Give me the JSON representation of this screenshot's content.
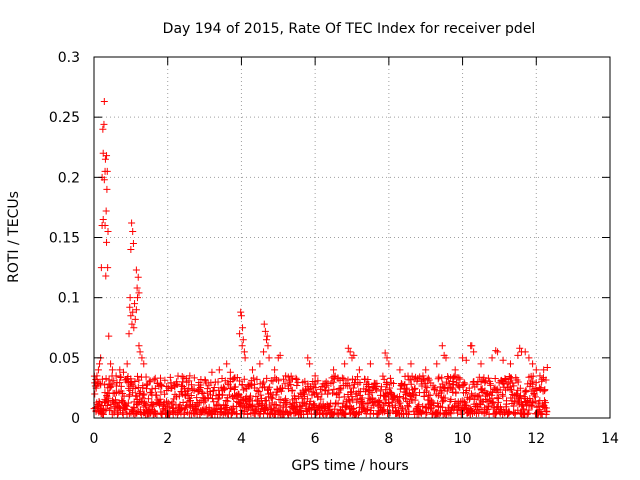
{
  "chart_data": {
    "type": "scatter",
    "title": "Day 194 of 2015, Rate Of TEC Index for receiver pdel",
    "xlabel": "GPS time / hours",
    "ylabel": "ROTI / TECUs",
    "xlim": [
      0,
      14
    ],
    "ylim": [
      0,
      0.3
    ],
    "xticks": [
      0,
      2,
      4,
      6,
      8,
      10,
      12,
      14
    ],
    "yticks": [
      0,
      0.05,
      0.1,
      0.15,
      0.2,
      0.25,
      0.3
    ],
    "xtick_labels": [
      "0",
      "2",
      "4",
      "6",
      "8",
      "10",
      "12",
      "14"
    ],
    "ytick_labels": [
      "0",
      "0.05",
      "0.1",
      "0.15",
      "0.2",
      "0.25",
      "0.3"
    ],
    "grid": true,
    "marker": "+",
    "color": "#ff0000",
    "series": [
      {
        "name": "ROTI",
        "points": [
          [
            0.05,
            0.032
          ],
          [
            0.08,
            0.035
          ],
          [
            0.1,
            0.03
          ],
          [
            0.12,
            0.04
          ],
          [
            0.15,
            0.045
          ],
          [
            0.18,
            0.05
          ],
          [
            0.2,
            0.125
          ],
          [
            0.22,
            0.16
          ],
          [
            0.22,
            0.2
          ],
          [
            0.24,
            0.24
          ],
          [
            0.25,
            0.165
          ],
          [
            0.25,
            0.22
          ],
          [
            0.27,
            0.244
          ],
          [
            0.28,
            0.263
          ],
          [
            0.28,
            0.198
          ],
          [
            0.3,
            0.205
          ],
          [
            0.3,
            0.16
          ],
          [
            0.31,
            0.215
          ],
          [
            0.32,
            0.118
          ],
          [
            0.33,
            0.172
          ],
          [
            0.34,
            0.218
          ],
          [
            0.34,
            0.146
          ],
          [
            0.35,
            0.19
          ],
          [
            0.36,
            0.205
          ],
          [
            0.37,
            0.125
          ],
          [
            0.38,
            0.155
          ],
          [
            0.4,
            0.068
          ],
          [
            0.45,
            0.045
          ],
          [
            0.5,
            0.04
          ],
          [
            0.6,
            0.035
          ],
          [
            0.7,
            0.04
          ],
          [
            0.8,
            0.038
          ],
          [
            0.9,
            0.045
          ],
          [
            0.95,
            0.07
          ],
          [
            0.97,
            0.092
          ],
          [
            0.98,
            0.1
          ],
          [
            1.0,
            0.085
          ],
          [
            1.0,
            0.14
          ],
          [
            1.02,
            0.162
          ],
          [
            1.03,
            0.078
          ],
          [
            1.05,
            0.155
          ],
          [
            1.05,
            0.088
          ],
          [
            1.07,
            0.145
          ],
          [
            1.08,
            0.075
          ],
          [
            1.1,
            0.095
          ],
          [
            1.12,
            0.082
          ],
          [
            1.15,
            0.09
          ],
          [
            1.15,
            0.123
          ],
          [
            1.17,
            0.108
          ],
          [
            1.18,
            0.1
          ],
          [
            1.2,
            0.117
          ],
          [
            1.22,
            0.104
          ],
          [
            1.22,
            0.06
          ],
          [
            1.25,
            0.055
          ],
          [
            1.3,
            0.05
          ],
          [
            1.35,
            0.045
          ],
          [
            1.5,
            0.03
          ],
          [
            1.8,
            0.028
          ],
          [
            2.1,
            0.025
          ],
          [
            2.4,
            0.03
          ],
          [
            2.6,
            0.035
          ],
          [
            2.9,
            0.032
          ],
          [
            3.2,
            0.038
          ],
          [
            3.4,
            0.04
          ],
          [
            3.6,
            0.045
          ],
          [
            3.7,
            0.038
          ],
          [
            3.8,
            0.033
          ],
          [
            3.95,
            0.07
          ],
          [
            3.98,
            0.088
          ],
          [
            4.0,
            0.085
          ],
          [
            4.02,
            0.06
          ],
          [
            4.03,
            0.075
          ],
          [
            4.05,
            0.065
          ],
          [
            4.08,
            0.055
          ],
          [
            4.1,
            0.05
          ],
          [
            4.3,
            0.04
          ],
          [
            4.5,
            0.045
          ],
          [
            4.6,
            0.055
          ],
          [
            4.62,
            0.078
          ],
          [
            4.65,
            0.072
          ],
          [
            4.68,
            0.065
          ],
          [
            4.7,
            0.068
          ],
          [
            4.72,
            0.06
          ],
          [
            4.75,
            0.05
          ],
          [
            4.9,
            0.04
          ],
          [
            5.0,
            0.05
          ],
          [
            5.05,
            0.052
          ],
          [
            5.2,
            0.035
          ],
          [
            5.5,
            0.032
          ],
          [
            5.8,
            0.05
          ],
          [
            5.85,
            0.045
          ],
          [
            6.0,
            0.035
          ],
          [
            6.3,
            0.03
          ],
          [
            6.5,
            0.04
          ],
          [
            6.8,
            0.045
          ],
          [
            6.9,
            0.058
          ],
          [
            6.95,
            0.055
          ],
          [
            7.0,
            0.05
          ],
          [
            7.05,
            0.052
          ],
          [
            7.2,
            0.04
          ],
          [
            7.5,
            0.045
          ],
          [
            7.9,
            0.054
          ],
          [
            7.95,
            0.05
          ],
          [
            8.0,
            0.045
          ],
          [
            8.3,
            0.04
          ],
          [
            8.6,
            0.045
          ],
          [
            9.0,
            0.04
          ],
          [
            9.3,
            0.045
          ],
          [
            9.45,
            0.06
          ],
          [
            9.5,
            0.052
          ],
          [
            9.55,
            0.05
          ],
          [
            9.8,
            0.04
          ],
          [
            10.0,
            0.05
          ],
          [
            10.1,
            0.048
          ],
          [
            10.22,
            0.06
          ],
          [
            10.25,
            0.06
          ],
          [
            10.3,
            0.055
          ],
          [
            10.5,
            0.045
          ],
          [
            10.8,
            0.05
          ],
          [
            10.9,
            0.056
          ],
          [
            10.95,
            0.055
          ],
          [
            11.1,
            0.048
          ],
          [
            11.3,
            0.045
          ],
          [
            11.5,
            0.052
          ],
          [
            11.55,
            0.058
          ],
          [
            11.6,
            0.055
          ],
          [
            11.7,
            0.055
          ],
          [
            11.8,
            0.05
          ],
          [
            11.9,
            0.045
          ],
          [
            12.0,
            0.04
          ],
          [
            12.1,
            0.035
          ],
          [
            12.2,
            0.04
          ],
          [
            12.3,
            0.042
          ]
        ],
        "band": {
          "description": "dense background cloud of ROTI values",
          "x_range": [
            0,
            12.3
          ],
          "y_range": [
            0.003,
            0.035
          ]
        }
      }
    ]
  }
}
